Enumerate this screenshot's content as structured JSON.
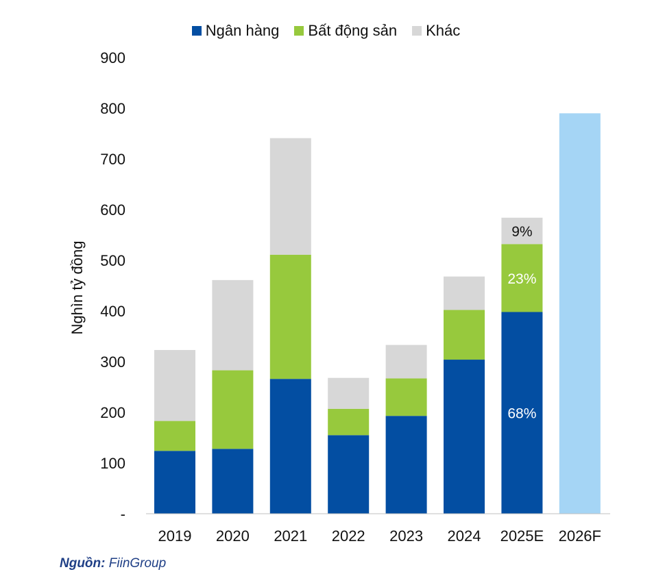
{
  "chart_data": {
    "type": "bar",
    "stacked": true,
    "categories": [
      "2019",
      "2020",
      "2021",
      "2022",
      "2023",
      "2024",
      "2025E",
      "2026F"
    ],
    "series": [
      {
        "name": "Ngân hàng",
        "color": "#034ea2",
        "values": [
          124,
          128,
          266,
          155,
          193,
          304,
          398,
          null
        ]
      },
      {
        "name": "Bất động sản",
        "color": "#97c93d",
        "values": [
          59,
          155,
          245,
          52,
          74,
          98,
          134,
          null
        ]
      },
      {
        "name": "Khác",
        "color": "#d7d7d7",
        "values": [
          140,
          178,
          230,
          61,
          66,
          66,
          52,
          null
        ]
      }
    ],
    "forecast": {
      "category": "2026F",
      "value": 790,
      "color": "#a5d5f5"
    },
    "annotations": [
      {
        "category": "2025E",
        "series": "Ngân hàng",
        "text": "68%",
        "color": "#ffffff"
      },
      {
        "category": "2025E",
        "series": "Bất động sản",
        "text": "23%",
        "color": "#ffffff"
      },
      {
        "category": "2025E",
        "series": "Khác",
        "text": "9%",
        "color": "#111111"
      }
    ],
    "ylabel": "Nghìn tỷ đồng",
    "ylim": [
      0,
      900
    ],
    "yticks": [
      {
        "value": 0,
        "label": "-"
      },
      {
        "value": 100,
        "label": "100"
      },
      {
        "value": 200,
        "label": "200"
      },
      {
        "value": 300,
        "label": "300"
      },
      {
        "value": 400,
        "label": "400"
      },
      {
        "value": 500,
        "label": "500"
      },
      {
        "value": 600,
        "label": "600"
      },
      {
        "value": 700,
        "label": "700"
      },
      {
        "value": 800,
        "label": "800"
      },
      {
        "value": 900,
        "label": "900"
      }
    ],
    "grid": false,
    "legend_position": "top-center"
  },
  "source": {
    "label": "Nguồn:",
    "text": "FiinGroup"
  }
}
